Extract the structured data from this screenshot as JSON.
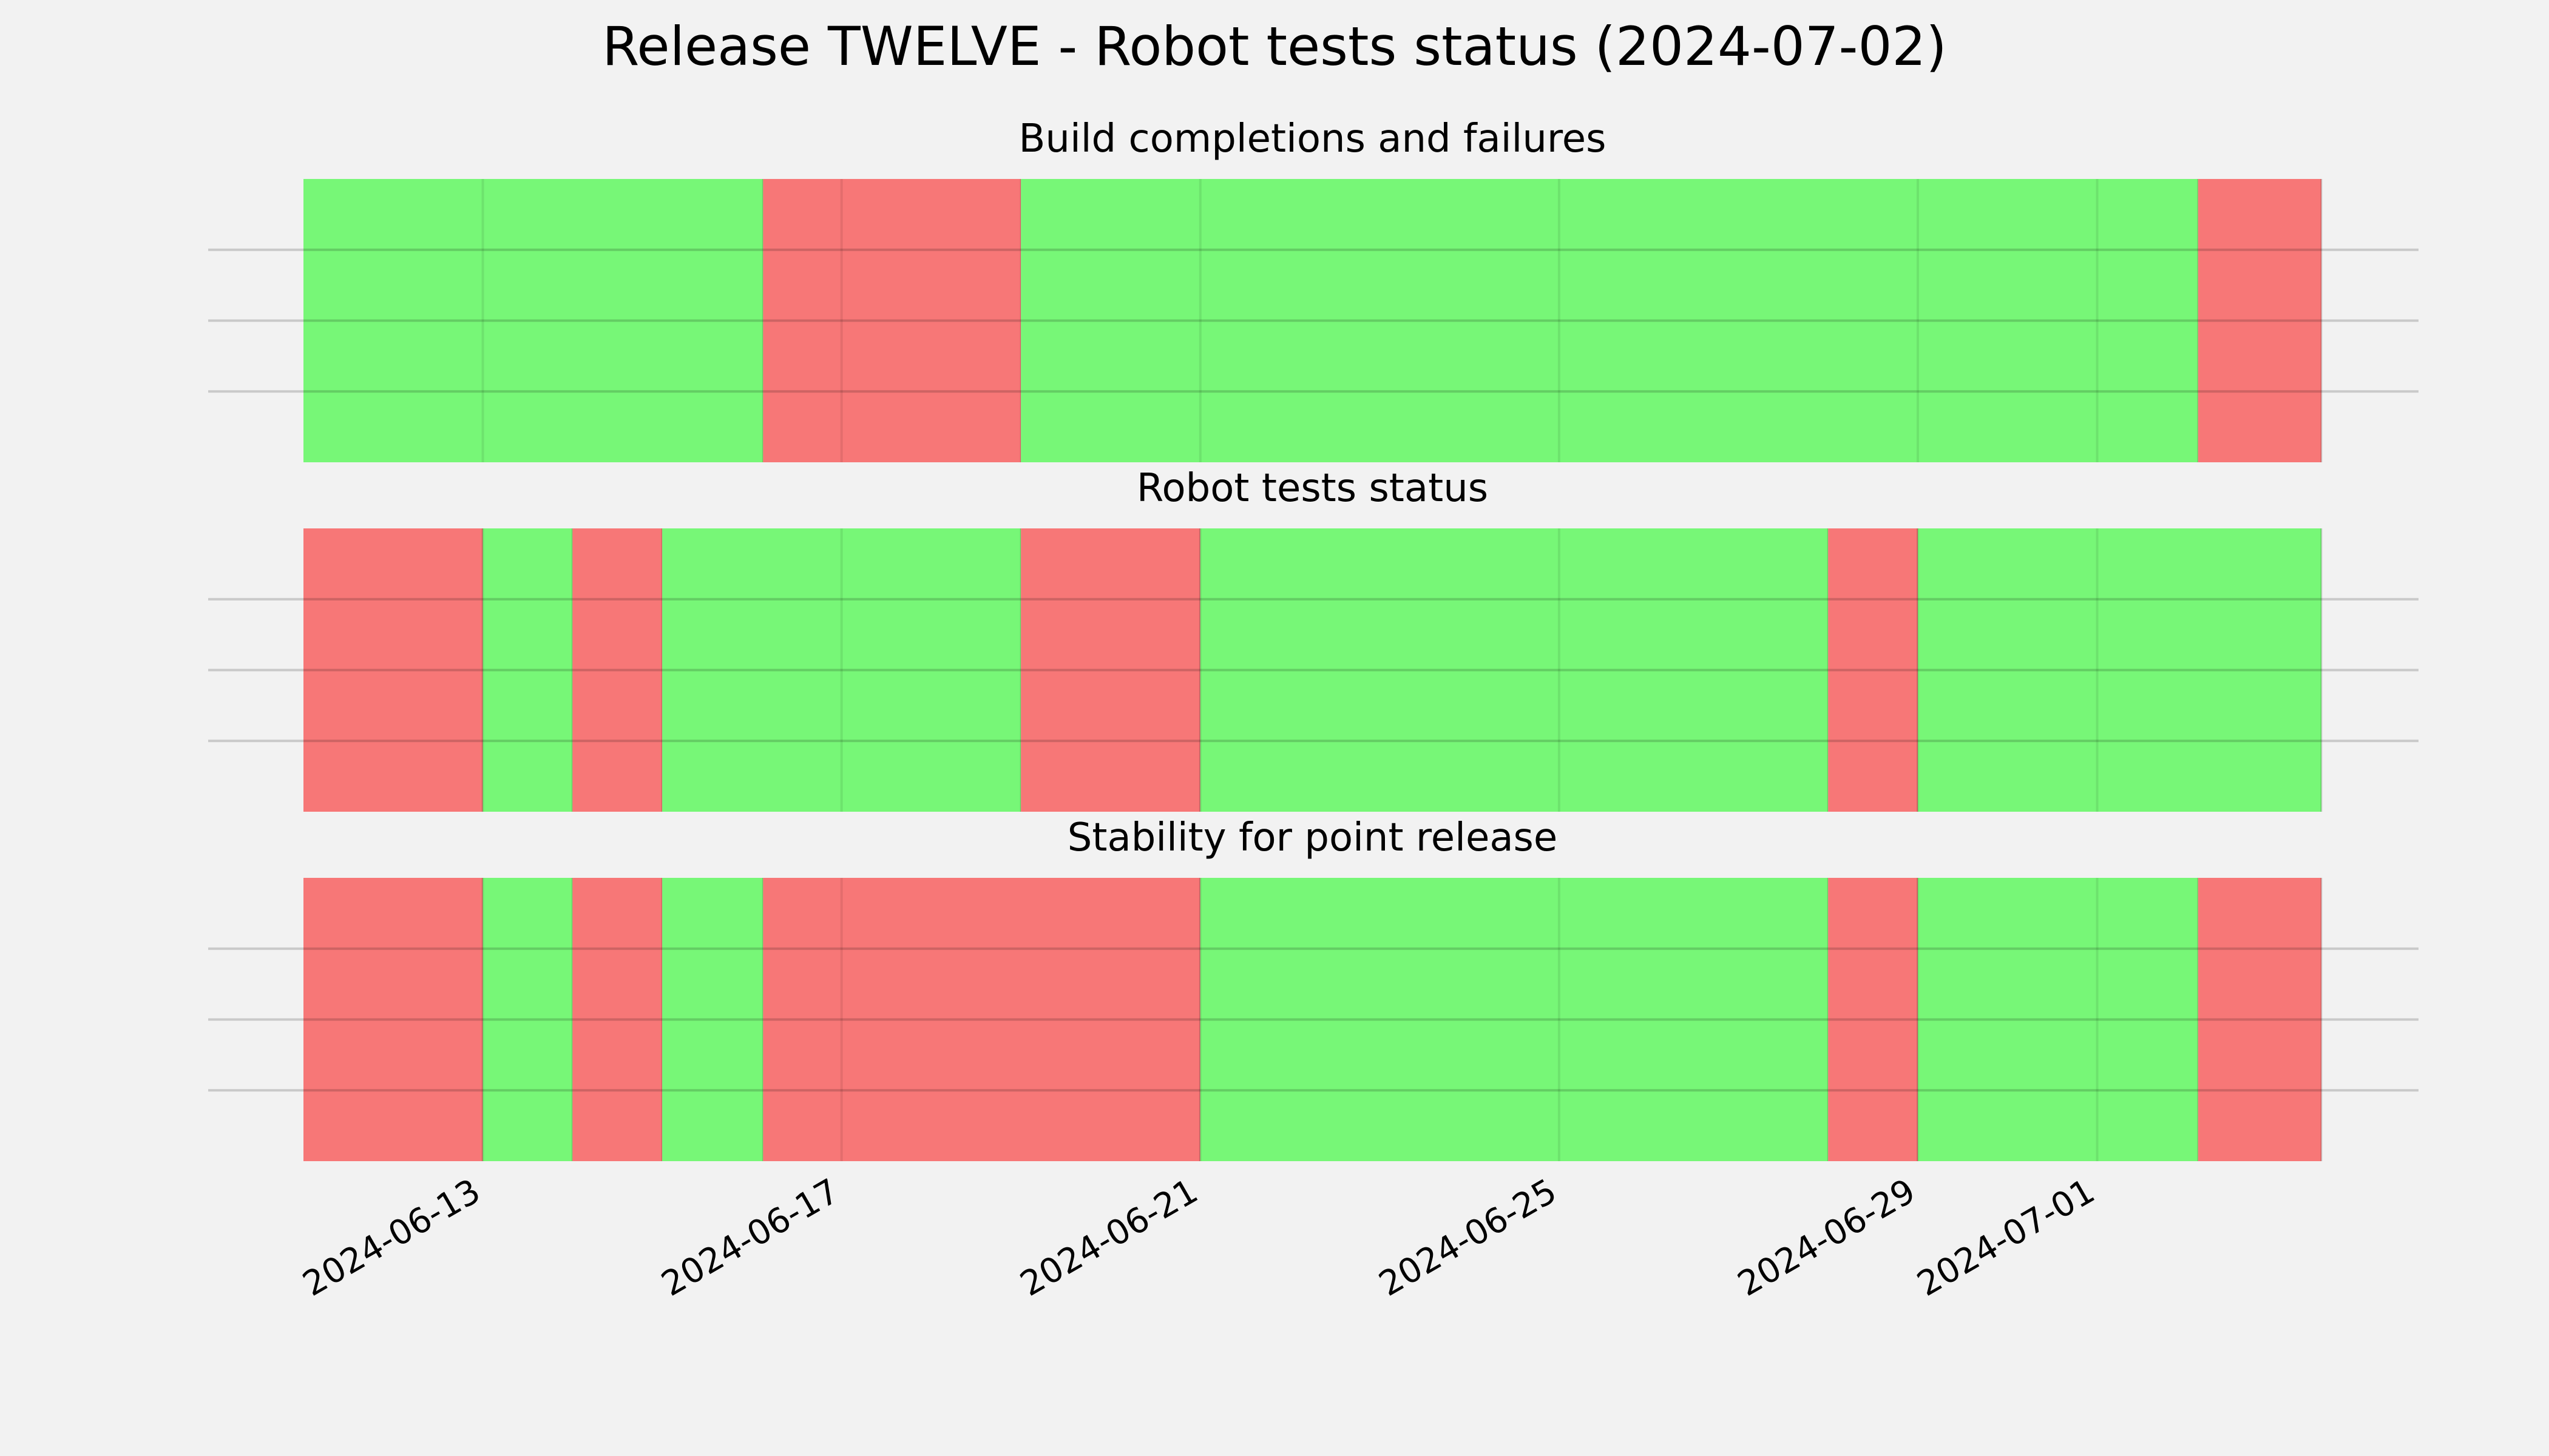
{
  "title": "Release TWELVE - Robot tests status (2024-07-02)",
  "chart_data": {
    "type": "timeline",
    "x_range": [
      "2024-06-11",
      "2024-07-03T12:00"
    ],
    "x_ticks": [
      "2024-06-13",
      "2024-06-17",
      "2024-06-21",
      "2024-06-25",
      "2024-06-29",
      "2024-07-01"
    ],
    "status_colors": {
      "pass": "#77f777",
      "fail": "#f77777"
    },
    "grid": true,
    "panels": [
      {
        "title": "Build completions and failures",
        "segments": [
          {
            "start": "2024-06-11",
            "end": "2024-06-16T03:00",
            "status": "pass"
          },
          {
            "start": "2024-06-16T03:00",
            "end": "2024-06-19",
            "status": "fail"
          },
          {
            "start": "2024-06-19",
            "end": "2024-07-02T03:00",
            "status": "pass"
          },
          {
            "start": "2024-07-02T03:00",
            "end": "2024-07-03T12:00",
            "status": "fail"
          }
        ]
      },
      {
        "title": "Robot tests status",
        "segments": [
          {
            "start": "2024-06-11",
            "end": "2024-06-13",
            "status": "fail"
          },
          {
            "start": "2024-06-13",
            "end": "2024-06-14",
            "status": "pass"
          },
          {
            "start": "2024-06-14",
            "end": "2024-06-15",
            "status": "fail"
          },
          {
            "start": "2024-06-15",
            "end": "2024-06-19",
            "status": "pass"
          },
          {
            "start": "2024-06-19",
            "end": "2024-06-21",
            "status": "fail"
          },
          {
            "start": "2024-06-21",
            "end": "2024-06-28",
            "status": "pass"
          },
          {
            "start": "2024-06-28",
            "end": "2024-06-29",
            "status": "fail"
          },
          {
            "start": "2024-06-29",
            "end": "2024-07-03T12:00",
            "status": "pass"
          }
        ]
      },
      {
        "title": "Stability for point release",
        "segments": [
          {
            "start": "2024-06-11",
            "end": "2024-06-13",
            "status": "fail"
          },
          {
            "start": "2024-06-13",
            "end": "2024-06-14",
            "status": "pass"
          },
          {
            "start": "2024-06-14",
            "end": "2024-06-15",
            "status": "fail"
          },
          {
            "start": "2024-06-15",
            "end": "2024-06-16T03:00",
            "status": "pass"
          },
          {
            "start": "2024-06-16T03:00",
            "end": "2024-06-21",
            "status": "fail"
          },
          {
            "start": "2024-06-21",
            "end": "2024-06-28",
            "status": "pass"
          },
          {
            "start": "2024-06-28",
            "end": "2024-06-29",
            "status": "fail"
          },
          {
            "start": "2024-06-29",
            "end": "2024-07-02T03:00",
            "status": "pass"
          },
          {
            "start": "2024-07-02T03:00",
            "end": "2024-07-03T12:00",
            "status": "fail"
          }
        ]
      }
    ]
  }
}
